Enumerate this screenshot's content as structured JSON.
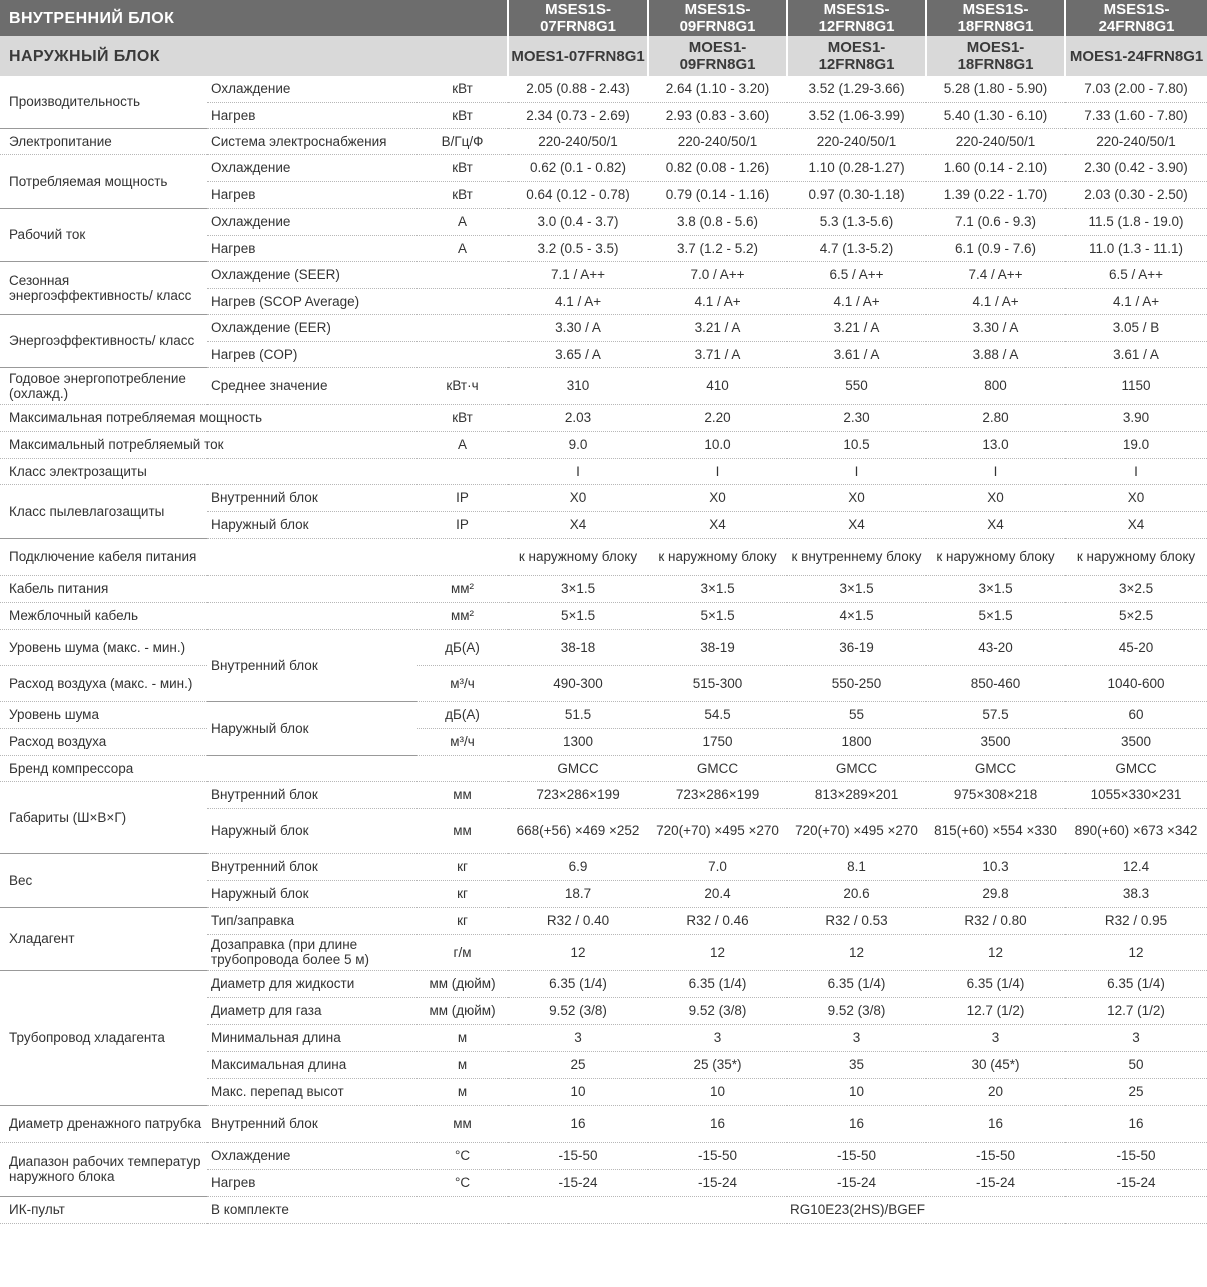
{
  "header": {
    "indoor_label": "ВНУТРЕННИЙ БЛОК",
    "outdoor_label": "НАРУЖНЫЙ БЛОК",
    "indoor_models": [
      "MSES1S-07FRN8G1",
      "MSES1S-09FRN8G1",
      "MSES1S-12FRN8G1",
      "MSES1S-18FRN8G1",
      "MSES1S-24FRN8G1"
    ],
    "outdoor_models": [
      "MOES1-07FRN8G1",
      "MOES1-09FRN8G1",
      "MOES1-12FRN8G1",
      "MOES1-18FRN8G1",
      "MOES1-24FRN8G1"
    ]
  },
  "rows": [
    {
      "param": "Производительность",
      "param_rows": 2,
      "sub": "Охлаждение",
      "unit": "кВт",
      "values": [
        "2.05 (0.88 - 2.43)",
        "2.64 (1.10 - 3.20)",
        "3.52 (1.29-3.66)",
        "5.28 (1.80 - 5.90)",
        "7.03 (2.00 - 7.80)"
      ]
    },
    {
      "sub": "Нагрев",
      "unit": "кВт",
      "values": [
        "2.34 (0.73 - 2.69)",
        "2.93 (0.83 - 3.60)",
        "3.52 (1.06-3.99)",
        "5.40 (1.30 - 6.10)",
        "7.33 (1.60 - 7.80)"
      ]
    },
    {
      "param": "Электропитание",
      "sub": "Система электроснабжения",
      "unit": "В/Гц/Ф",
      "values": [
        "220-240/50/1",
        "220-240/50/1",
        "220-240/50/1",
        "220-240/50/1",
        "220-240/50/1"
      ]
    },
    {
      "param": "Потребляемая мощность",
      "param_rows": 2,
      "sub": "Охлаждение",
      "unit": "кВт",
      "values": [
        "0.62 (0.1 - 0.82)",
        "0.82 (0.08 - 1.26)",
        "1.10 (0.28-1.27)",
        "1.60 (0.14 - 2.10)",
        "2.30 (0.42 - 3.90)"
      ]
    },
    {
      "sub": "Нагрев",
      "unit": "кВт",
      "values": [
        "0.64 (0.12 - 0.78)",
        "0.79 (0.14 - 1.16)",
        "0.97 (0.30-1.18)",
        "1.39 (0.22 - 1.70)",
        "2.03 (0.30 - 2.50)"
      ]
    },
    {
      "param": "Рабочий ток",
      "param_rows": 2,
      "sub": "Охлаждение",
      "unit": "А",
      "values": [
        "3.0 (0.4 - 3.7)",
        "3.8 (0.8 - 5.6)",
        "5.3 (1.3-5.6)",
        "7.1 (0.6 - 9.3)",
        "11.5 (1.8 - 19.0)"
      ]
    },
    {
      "sub": "Нагрев",
      "unit": "А",
      "values": [
        "3.2 (0.5 - 3.5)",
        "3.7 (1.2 - 5.2)",
        "4.7 (1.3-5.2)",
        "6.1 (0.9 - 7.6)",
        "11.0 (1.3 - 11.1)"
      ]
    },
    {
      "param": "Сезонная энергоэффективность/ класс",
      "param_rows": 2,
      "sub": "Охлаждение (SEER)",
      "unit": "",
      "values": [
        "7.1 / A++",
        "7.0 / A++",
        "6.5 / A++",
        "7.4 / A++",
        "6.5 / A++"
      ]
    },
    {
      "sub": "Нагрев (SCOP Average)",
      "unit": "",
      "values": [
        "4.1 / A+",
        "4.1 / A+",
        "4.1 / A+",
        "4.1 / A+",
        "4.1 / A+"
      ]
    },
    {
      "param": "Энергоэффективность/ класс",
      "param_rows": 2,
      "sub": "Охлаждение (EER)",
      "unit": "",
      "values": [
        "3.30 / A",
        "3.21 / A",
        "3.21 / A",
        "3.30 / A",
        "3.05 / B"
      ]
    },
    {
      "sub": "Нагрев (COP)",
      "unit": "",
      "values": [
        "3.65 / A",
        "3.71 / A",
        "3.61 / A",
        "3.88 / A",
        "3.61 / A"
      ]
    },
    {
      "param": "Годовое энергопотребление (охлажд.)",
      "sub": "Среднее значение",
      "unit": "кВт·ч",
      "values": [
        "310",
        "410",
        "550",
        "800",
        "1150"
      ]
    },
    {
      "param": "Максимальная потребляемая мощность",
      "param_span": 2,
      "unit": "кВт",
      "values": [
        "2.03",
        "2.20",
        "2.30",
        "2.80",
        "3.90"
      ]
    },
    {
      "param": "Максимальный потребляемый ток",
      "param_span": 2,
      "unit": "А",
      "values": [
        "9.0",
        "10.0",
        "10.5",
        "13.0",
        "19.0"
      ]
    },
    {
      "param": "Класс электрозащиты",
      "param_span": 2,
      "unit": "",
      "values": [
        "I",
        "I",
        "I",
        "I",
        "I"
      ]
    },
    {
      "param": "Класс пылевлагозащиты",
      "param_rows": 2,
      "sub": "Внутренний блок",
      "unit": "IP",
      "values": [
        "X0",
        "X0",
        "X0",
        "X0",
        "X0"
      ]
    },
    {
      "sub": "Наружный блок",
      "unit": "IP",
      "values": [
        "X4",
        "X4",
        "X4",
        "X4",
        "X4"
      ]
    },
    {
      "param": "Подключение кабеля питания",
      "param_span": 2,
      "unit": "",
      "values": [
        "к наружному блоку",
        "к наружному блоку",
        "к внутреннему блоку",
        "к наружному блоку",
        "к наружному блоку"
      ]
    },
    {
      "param": "Кабель питания",
      "param_span": 2,
      "unit": "мм²",
      "values": [
        "3×1.5",
        "3×1.5",
        "3×1.5",
        "3×1.5",
        "3×2.5"
      ]
    },
    {
      "param": "Межблочный кабель",
      "param_span": 2,
      "unit": "мм²",
      "values": [
        "5×1.5",
        "5×1.5",
        "4×1.5",
        "5×1.5",
        "5×2.5"
      ]
    },
    {
      "param": "Уровень шума (макс. - мин.)",
      "sub": "Внутренний блок",
      "sub_rows": 2,
      "unit": "дБ(А)",
      "values": [
        "38-18",
        "38-19",
        "36-19",
        "43-20",
        "45-20"
      ]
    },
    {
      "param": "Расход воздуха (макс. - мин.)",
      "unit": "м³/ч",
      "values": [
        "490-300",
        "515-300",
        "550-250",
        "850-460",
        "1040-600"
      ]
    },
    {
      "param": "Уровень шума",
      "sub": "Наружный блок",
      "sub_rows": 2,
      "unit": "дБ(А)",
      "values": [
        "51.5",
        "54.5",
        "55",
        "57.5",
        "60"
      ]
    },
    {
      "param": "Расход воздуха",
      "unit": "м³/ч",
      "values": [
        "1300",
        "1750",
        "1800",
        "3500",
        "3500"
      ]
    },
    {
      "param": "Бренд компрессора",
      "param_span": 3,
      "values": [
        "GMCC",
        "GMCC",
        "GMCC",
        "GMCC",
        "GMCC"
      ]
    },
    {
      "param": "Габариты (Ш×В×Г)",
      "param_rows": 2,
      "sub": "Внутренний блок",
      "unit": "мм",
      "values": [
        "723×286×199",
        "723×286×199",
        "813×289×201",
        "975×308×218",
        "1055×330×231"
      ]
    },
    {
      "sub": "Наружный блок",
      "unit": "мм",
      "values": [
        "668(+56) ×469 ×252",
        "720(+70) ×495 ×270",
        "720(+70) ×495 ×270",
        "815(+60) ×554 ×330",
        "890(+60) ×673 ×342"
      ]
    },
    {
      "param": "Вес",
      "param_rows": 2,
      "sub": "Внутренний блок",
      "unit": "кг",
      "values": [
        "6.9",
        "7.0",
        "8.1",
        "10.3",
        "12.4"
      ]
    },
    {
      "sub": "Наружный блок",
      "unit": "кг",
      "values": [
        "18.7",
        "20.4",
        "20.6",
        "29.8",
        "38.3"
      ]
    },
    {
      "param": "Хладагент",
      "param_rows": 2,
      "sub": "Тип/заправка",
      "unit": "кг",
      "values": [
        "R32 / 0.40",
        "R32 / 0.46",
        "R32 / 0.53",
        "R32 / 0.80",
        "R32 / 0.95"
      ]
    },
    {
      "sub": "Дозаправка (при длине трубопровода более 5 м)",
      "unit": "г/м",
      "values": [
        "12",
        "12",
        "12",
        "12",
        "12"
      ]
    },
    {
      "param": "Трубопровод хладагента",
      "param_rows": 5,
      "sub": "Диаметр для жидкости",
      "unit": "мм (дюйм)",
      "values": [
        "6.35 (1/4)",
        "6.35 (1/4)",
        "6.35 (1/4)",
        "6.35 (1/4)",
        "6.35 (1/4)"
      ]
    },
    {
      "sub": "Диаметр для газа",
      "unit": "мм (дюйм)",
      "values": [
        "9.52 (3/8)",
        "9.52 (3/8)",
        "9.52 (3/8)",
        "12.7 (1/2)",
        "12.7 (1/2)"
      ]
    },
    {
      "sub": "Минимальная длина",
      "unit": "м",
      "values": [
        "3",
        "3",
        "3",
        "3",
        "3"
      ]
    },
    {
      "sub": "Максимальная длина",
      "unit": "м",
      "values": [
        "25",
        "25 (35*)",
        "35",
        "30 (45*)",
        "50"
      ]
    },
    {
      "sub": "Макс. перепад высот",
      "unit": "м",
      "values": [
        "10",
        "10",
        "10",
        "20",
        "25"
      ]
    },
    {
      "param": "Диаметр дренажного патрубка",
      "sub": "Внутренний блок",
      "unit": "мм",
      "values": [
        "16",
        "16",
        "16",
        "16",
        "16"
      ]
    },
    {
      "param": "Диапазон рабочих температур наружного блока",
      "param_rows": 2,
      "sub": "Охлаждение",
      "unit": "°C",
      "values": [
        "-15-50",
        "-15-50",
        "-15-50",
        "-15-50",
        "-15-50"
      ]
    },
    {
      "sub": "Нагрев",
      "unit": "°C",
      "values": [
        "-15-24",
        "-15-24",
        "-15-24",
        "-15-24",
        "-15-24"
      ]
    },
    {
      "param": "ИК-пульт",
      "sub": "В комплекте",
      "sub_span": 2,
      "merged_value": "RG10E23(2HS)/BGEF"
    }
  ]
}
